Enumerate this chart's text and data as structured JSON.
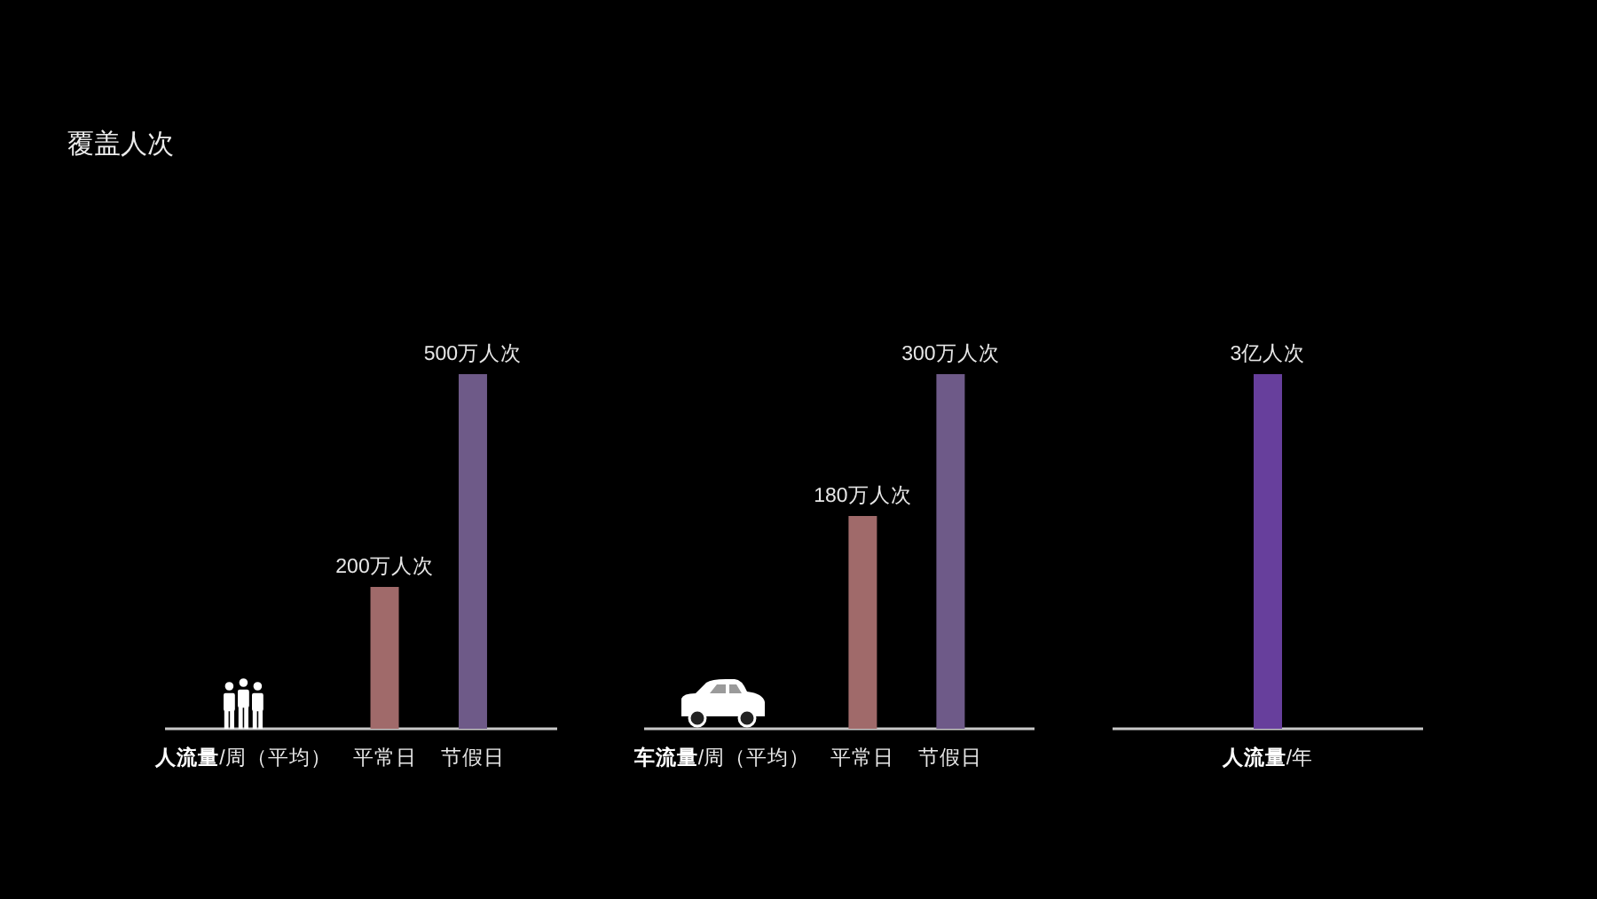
{
  "chart_data": [
    {
      "type": "bar",
      "title": "覆盖人次",
      "categories": [
        "人流量/周（平均）",
        "平常日",
        "节假日"
      ],
      "values": [
        null,
        200,
        500
      ],
      "colors": [
        null,
        "#a06a6a",
        "#6e5a88"
      ],
      "value_labels": [
        null,
        "200万人次",
        "500万人次"
      ]
    },
    {
      "type": "bar",
      "categories": [
        "车流量/周（平均）",
        "平常日",
        "节假日"
      ],
      "values": [
        null,
        180,
        300
      ],
      "colors": [
        null,
        "#a06a6a",
        "#6e5a88"
      ],
      "value_labels": [
        null,
        "180万人次",
        "300万人次"
      ]
    },
    {
      "type": "bar",
      "categories": [
        "人流量/年"
      ],
      "values": [
        3
      ],
      "colors": [
        "#673f9c"
      ],
      "value_labels": [
        "3亿人次"
      ]
    }
  ]
}
